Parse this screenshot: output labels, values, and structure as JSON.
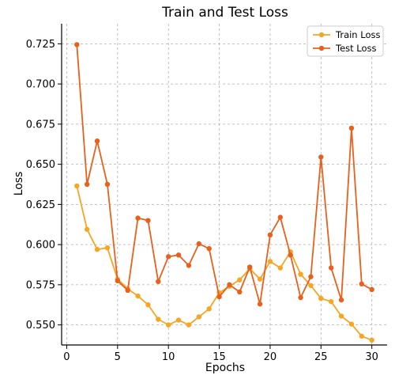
{
  "chart_data": {
    "type": "line",
    "title": "Train and Test Loss",
    "xlabel": "Epochs",
    "ylabel": "Loss",
    "x": [
      1,
      2,
      3,
      4,
      5,
      6,
      7,
      8,
      9,
      10,
      11,
      12,
      13,
      14,
      15,
      16,
      17,
      18,
      19,
      20,
      21,
      22,
      23,
      24,
      25,
      26,
      27,
      28,
      29,
      30
    ],
    "xlim": [
      -0.5,
      31.5
    ],
    "ylim": [
      0.5375,
      0.7375
    ],
    "xticks": [
      0,
      5,
      10,
      15,
      20,
      25,
      30
    ],
    "xtick_labels": [
      "0",
      "5",
      "10",
      "15",
      "20",
      "25",
      "30"
    ],
    "yticks": [
      0.55,
      0.575,
      0.6,
      0.625,
      0.65,
      0.675,
      0.7,
      0.725
    ],
    "ytick_labels": [
      "0.550",
      "0.575",
      "0.600",
      "0.625",
      "0.650",
      "0.675",
      "0.700",
      "0.725"
    ],
    "grid": true,
    "legend_position": "top-right",
    "series": [
      {
        "name": "Train Loss",
        "color": "#f5a623",
        "values": [
          0.6365,
          0.6095,
          0.597,
          0.598,
          0.5785,
          0.5725,
          0.568,
          0.5625,
          0.5535,
          0.55,
          0.553,
          0.55,
          0.555,
          0.56,
          0.57,
          0.574,
          0.578,
          0.585,
          0.5785,
          0.5895,
          0.5855,
          0.5955,
          0.5815,
          0.5745,
          0.5665,
          0.5645,
          0.5555,
          0.5505,
          0.543,
          0.5405
        ]
      },
      {
        "name": "Test Loss",
        "color": "#e8601c",
        "values": [
          0.7245,
          0.6375,
          0.6645,
          0.6375,
          0.5775,
          0.5715,
          0.6165,
          0.615,
          0.577,
          0.5925,
          0.5935,
          0.587,
          0.6005,
          0.5975,
          0.5675,
          0.575,
          0.5705,
          0.586,
          0.563,
          0.606,
          0.617,
          0.5935,
          0.567,
          0.58,
          0.6545,
          0.5855,
          0.5655,
          0.6725,
          0.5755,
          0.572
        ]
      }
    ]
  }
}
